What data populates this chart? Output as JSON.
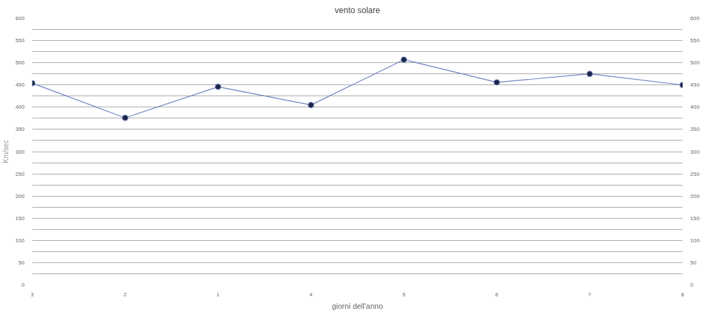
{
  "chart_data": {
    "type": "line",
    "title": "vento solare",
    "xlabel": "giorni dell'anno",
    "ylabel": "Km/sec",
    "categories": [
      "3",
      "2",
      "1",
      "4",
      "5",
      "6",
      "7",
      "8"
    ],
    "series": [
      {
        "color": "#6b7fbf",
        "values": [
          454,
          376,
          446,
          405,
          507,
          456,
          475,
          450
        ]
      }
    ],
    "ylim": [
      0,
      600
    ],
    "yticks": [
      0,
      {
        "value": 25,
        "label": null
      },
      50,
      {
        "value": 75,
        "label": null
      },
      100,
      {
        "value": 125,
        "label": null
      },
      150,
      {
        "value": 175,
        "label": null
      },
      200,
      {
        "value": 225,
        "label": null
      },
      250,
      {
        "value": 275,
        "label": null
      },
      300,
      {
        "value": 325,
        "label": null
      },
      350,
      {
        "value": 375,
        "label": null
      },
      400,
      {
        "value": 425,
        "label": null
      },
      450,
      {
        "value": 475,
        "label": null
      },
      500,
      {
        "value": 525,
        "label": null
      },
      550,
      {
        "value": 575,
        "label": null
      },
      600
    ],
    "y2lim": [
      0,
      600
    ],
    "y2ticks": [
      0,
      50,
      100,
      150,
      200,
      250,
      300,
      350,
      400,
      450,
      500,
      550,
      600
    ],
    "grid": "y",
    "marker": "circle",
    "line_style": "solid"
  }
}
